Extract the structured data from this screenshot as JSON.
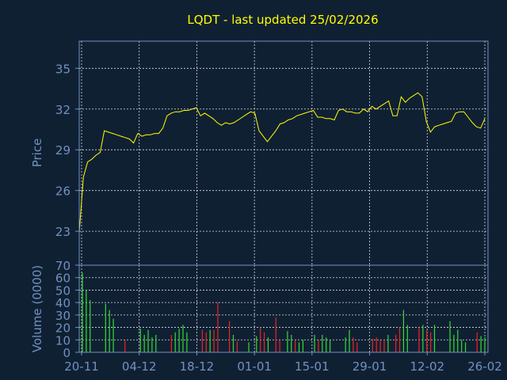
{
  "chart_data": {
    "title": "LQDT - last updated 25/02/2026",
    "colors": {
      "background": "#102033",
      "axis": "#6f92bf",
      "grid": "#d8dde6",
      "title": "#ffff00",
      "price_line": "#ffff00",
      "volume_up": "#33dd33",
      "volume_down": "#ee2222"
    },
    "x_tick_labels": [
      "20-11",
      "04-12",
      "18-12",
      "01-01",
      "15-01",
      "29-01",
      "12-02",
      "26-02"
    ],
    "price_panel": {
      "type": "line",
      "ylabel": "Price",
      "ylim": [
        20.5,
        37
      ],
      "yticks": [
        23,
        26,
        29,
        32,
        35
      ],
      "ytick_labels": [
        "23",
        "26",
        "29",
        "32",
        "35"
      ],
      "series": [
        {
          "values": [
            22.9,
            27.0,
            28.1,
            28.3,
            28.6,
            28.8,
            30.4,
            30.3,
            30.2,
            30.1,
            30.0,
            29.9,
            29.8,
            29.5,
            30.2,
            30.0,
            30.1,
            30.1,
            30.2,
            30.2,
            30.6,
            31.5,
            31.7,
            31.8,
            31.8,
            31.9,
            31.9,
            32.0,
            32.1,
            31.5,
            31.7,
            31.5,
            31.3,
            31.0,
            30.8,
            31.0,
            30.9,
            31.0,
            31.2,
            31.4,
            31.6,
            31.8,
            31.7,
            30.4,
            30.0,
            29.6,
            30.0,
            30.4,
            30.9,
            31.0,
            31.2,
            31.3,
            31.5,
            31.6,
            31.7,
            31.8,
            31.9,
            31.4,
            31.4,
            31.3,
            31.3,
            31.2,
            31.9,
            32.0,
            31.8,
            31.8,
            31.7,
            31.7,
            32.0,
            31.8,
            32.2,
            32.0,
            32.2,
            32.4,
            32.6,
            31.5,
            31.5,
            32.9,
            32.5,
            32.8,
            33.0,
            33.2,
            32.9,
            31.1,
            30.3,
            30.7,
            30.8,
            30.9,
            31.0,
            31.1,
            31.7,
            31.8,
            31.8,
            31.4,
            31.0,
            30.7,
            30.6,
            31.3
          ]
        }
      ]
    },
    "volume_panel": {
      "type": "bar",
      "ylabel": "Volume (0000)",
      "ylim": [
        0,
        70
      ],
      "yticks": [
        0,
        10,
        20,
        30,
        40,
        50,
        60,
        70
      ],
      "ytick_labels": [
        "0",
        "10",
        "20",
        "30",
        "40",
        "50",
        "60",
        "70"
      ],
      "series": [
        {
          "name": "",
          "values": [
            64,
            50,
            42,
            0,
            0,
            0,
            39,
            34,
            27,
            0,
            0,
            10,
            0,
            0,
            0,
            19,
            14,
            18,
            12,
            14,
            0,
            0,
            0,
            14,
            16,
            19,
            22,
            16,
            0,
            0,
            0,
            18,
            16,
            18,
            18,
            40,
            0,
            0,
            25,
            14,
            9,
            0,
            0,
            8,
            0,
            13,
            20,
            16,
            12,
            0,
            28,
            10,
            0,
            17,
            14,
            10,
            8,
            10,
            0,
            0,
            14,
            10,
            14,
            12,
            10,
            0,
            0,
            0,
            12,
            18,
            12,
            8,
            0,
            0,
            0,
            11,
            12,
            10,
            10,
            14,
            0,
            14,
            20,
            34,
            22,
            0,
            0,
            20,
            22,
            18,
            16,
            22,
            0,
            0,
            0,
            25,
            14,
            18,
            10,
            8,
            0,
            0,
            16,
            13,
            12
          ],
          "directions": [
            "up",
            "up",
            "up",
            "up",
            "up",
            "up",
            "up",
            "up",
            "up",
            "up",
            "up",
            "down",
            "up",
            "up",
            "up",
            "up",
            "up",
            "up",
            "up",
            "up",
            "up",
            "up",
            "up",
            "down",
            "up",
            "up",
            "up",
            "up",
            "up",
            "up",
            "up",
            "down",
            "down",
            "up",
            "down",
            "down",
            "up",
            "up",
            "down",
            "up",
            "down",
            "up",
            "up",
            "up",
            "up",
            "up",
            "down",
            "down",
            "up",
            "up",
            "down",
            "down",
            "up",
            "up",
            "up",
            "down",
            "up",
            "up",
            "up",
            "up",
            "up",
            "down",
            "up",
            "up",
            "up",
            "up",
            "up",
            "up",
            "up",
            "up",
            "down",
            "down",
            "up",
            "up",
            "up",
            "down",
            "down",
            "down",
            "down",
            "up",
            "up",
            "down",
            "down",
            "up",
            "up",
            "up",
            "up",
            "down",
            "up",
            "down",
            "down",
            "up",
            "up",
            "up",
            "up",
            "up",
            "up",
            "up",
            "up",
            "up",
            "up",
            "up",
            "down",
            "up",
            "up"
          ]
        }
      ]
    },
    "grid": true
  }
}
